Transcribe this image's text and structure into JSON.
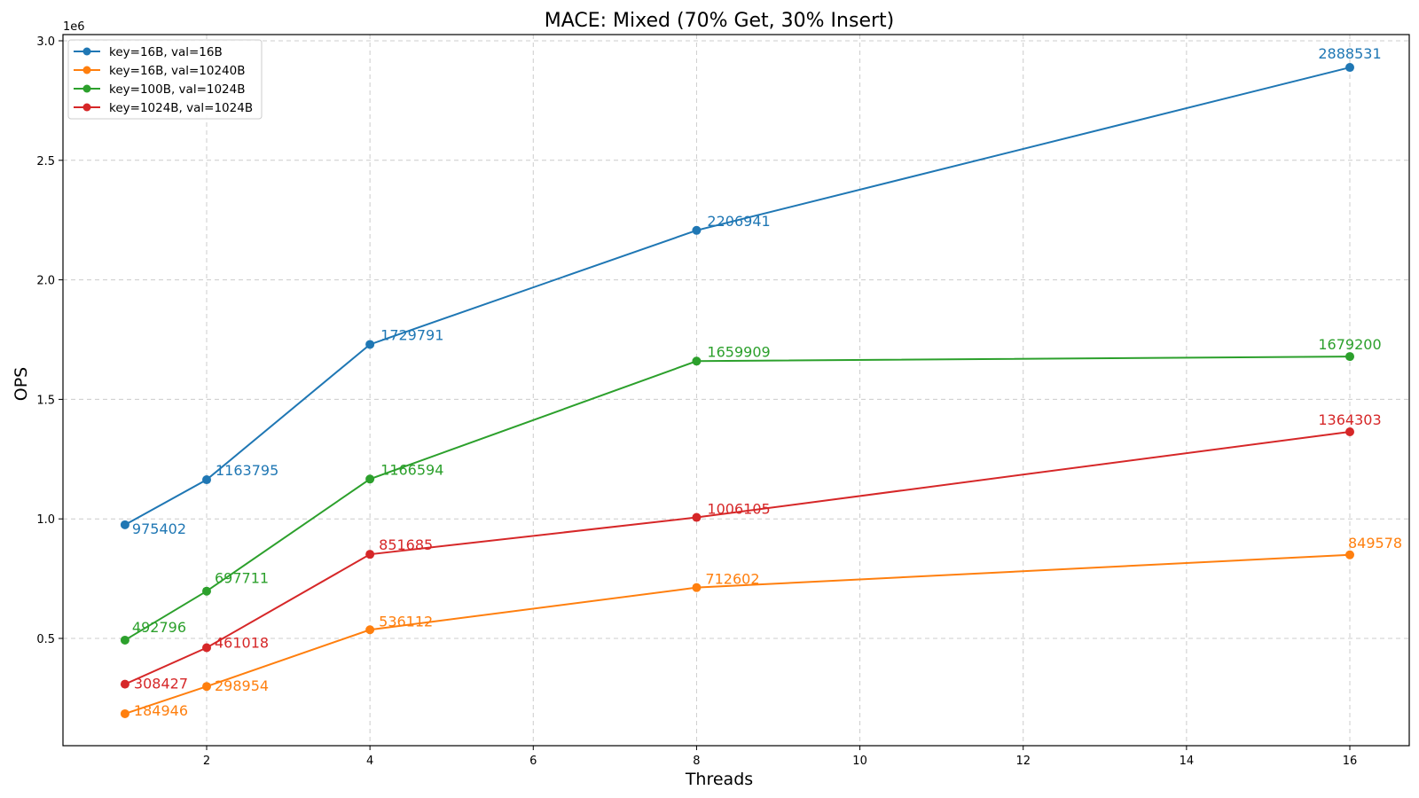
{
  "chart_data": {
    "type": "line",
    "title": "MACE: Mixed (70% Get, 30% Insert)",
    "xlabel": "Threads",
    "ylabel": "OPS",
    "y_offset_label": "1e6",
    "xlim": [
      0.25,
      16.75
    ],
    "ylim": [
      0.0,
      3.0
    ],
    "y_scale": 1000000,
    "x_ticks": [
      2,
      4,
      6,
      8,
      10,
      12,
      14,
      16
    ],
    "x_tick_labels": [
      "2",
      "4",
      "6",
      "8",
      "10",
      "12",
      "14",
      "16"
    ],
    "y_ticks": [
      0.5,
      1.0,
      1.5,
      2.0,
      2.5,
      3.0
    ],
    "y_tick_labels": [
      "0.5",
      "1.0",
      "1.5",
      "2.0",
      "2.5",
      "3.0"
    ],
    "grid": true,
    "legend_position": "top-left",
    "x": [
      1,
      2,
      4,
      8,
      16
    ],
    "series": [
      {
        "name": "key=16B, val=16B",
        "color": "#1f77b4",
        "values": [
          975402,
          1163795,
          1729791,
          2206941,
          2888531
        ],
        "labels": [
          "975402",
          "1163795",
          "1729791",
          "2206941",
          "2888531"
        ]
      },
      {
        "name": "key=16B, val=10240B",
        "color": "#ff7f0e",
        "values": [
          184946,
          298954,
          536112,
          712602,
          849578
        ],
        "labels": [
          "184946",
          "298954",
          "536112",
          "712602",
          "849578"
        ]
      },
      {
        "name": "key=100B, val=1024B",
        "color": "#2ca02c",
        "values": [
          492796,
          697711,
          1166594,
          1659909,
          1679200
        ],
        "labels": [
          "492796",
          "697711",
          "1166594",
          "1659909",
          "1679200"
        ]
      },
      {
        "name": "key=1024B, val=1024B",
        "color": "#d62728",
        "values": [
          308427,
          461018,
          851685,
          1006105,
          1364303
        ],
        "labels": [
          "308427",
          "461018",
          "851685",
          "1006105",
          "1364303"
        ]
      }
    ]
  }
}
